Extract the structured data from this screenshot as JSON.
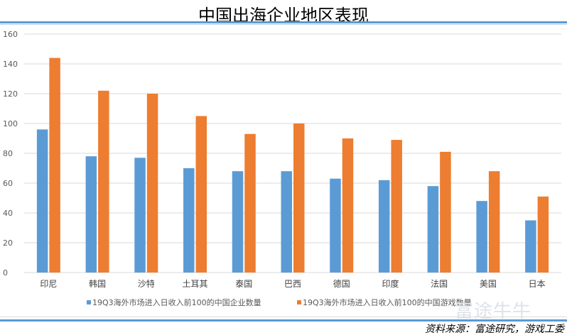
{
  "chart_data": {
    "type": "bar",
    "title": "中国出海企业地区表现",
    "categories": [
      "印尼",
      "韩国",
      "沙特",
      "土耳其",
      "泰国",
      "巴西",
      "德国",
      "印度",
      "法国",
      "美国",
      "日本"
    ],
    "series": [
      {
        "name": "19Q3海外市场进入日收入前100的中国企业数量",
        "color": "#5b9bd5",
        "values": [
          96,
          78,
          77,
          70,
          68,
          68,
          63,
          62,
          58,
          48,
          35
        ]
      },
      {
        "name": "19Q3海外市场进入日收入前100的中国游戏数量",
        "color": "#ed7d31",
        "values": [
          144,
          122,
          120,
          105,
          93,
          100,
          90,
          89,
          81,
          68,
          51
        ]
      }
    ],
    "ylim": [
      0,
      160
    ],
    "yticks": [
      0,
      20,
      40,
      60,
      80,
      100,
      120,
      140,
      160
    ],
    "grid": true,
    "legend": "bottom"
  },
  "source": "资料来源：富途研究，游戏工委",
  "watermark": "富途牛牛"
}
